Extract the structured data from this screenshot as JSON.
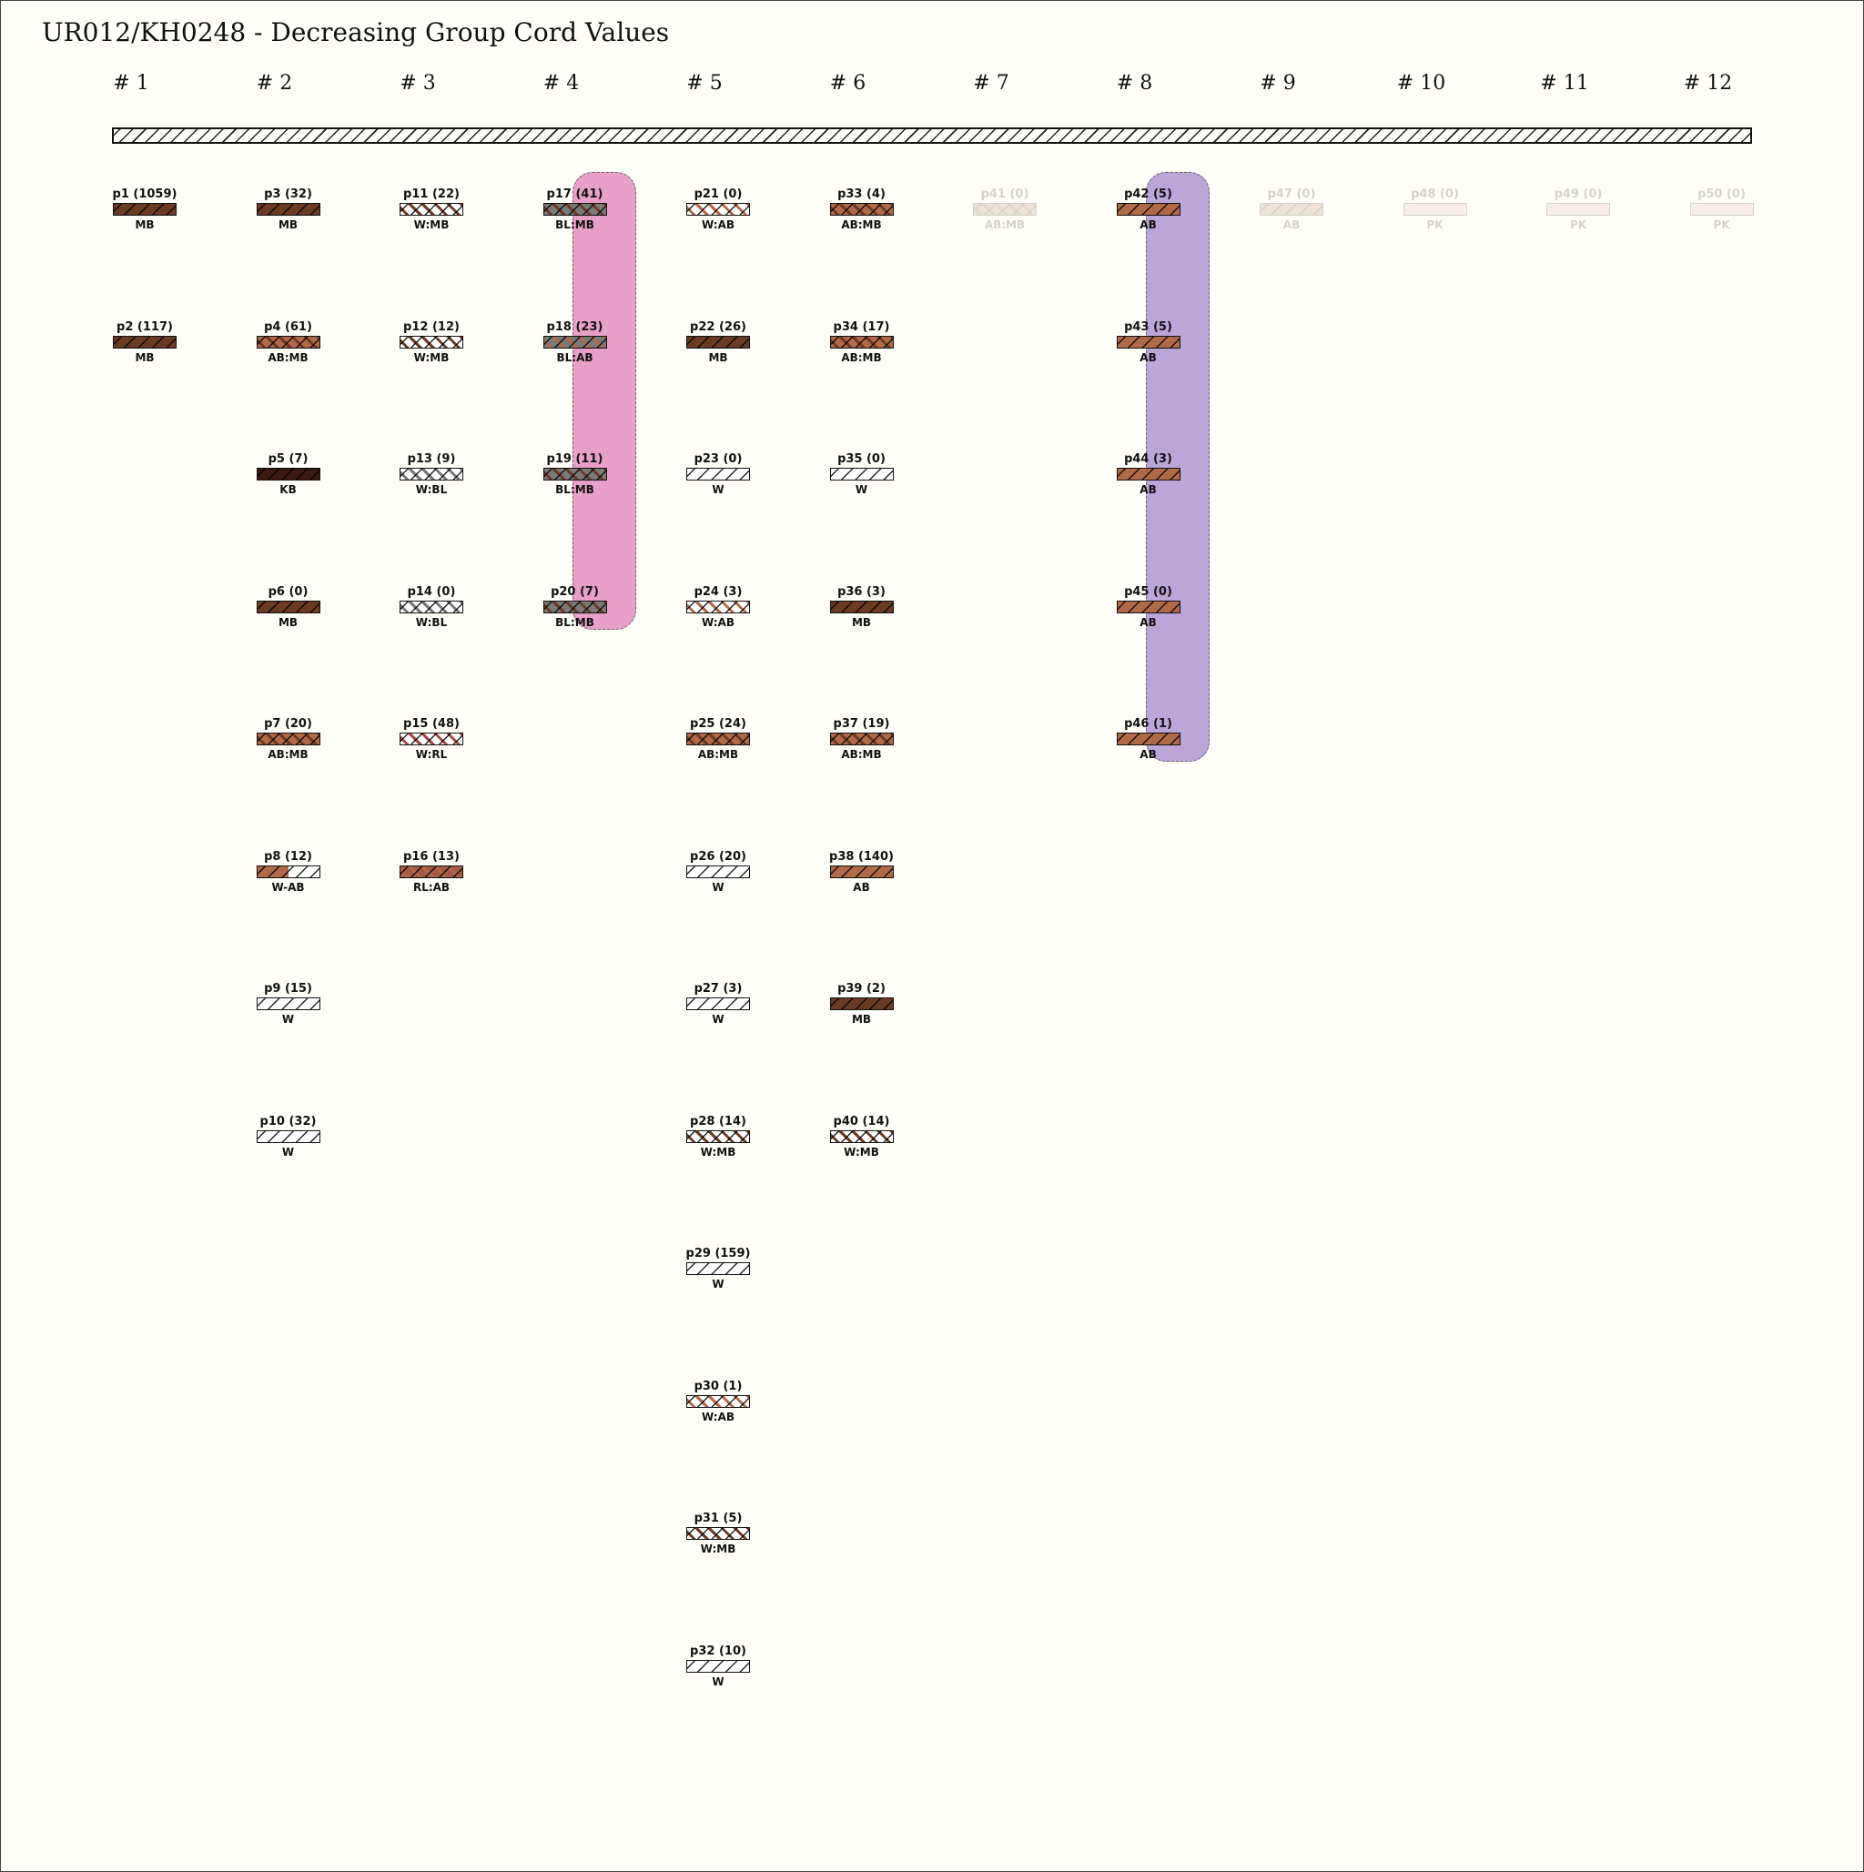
{
  "title": "UR012/KH0248 - Decreasing Group Cord Values",
  "highlight_colors": {
    "group4": "#e8a0c8",
    "group8": "#bba6d8"
  },
  "groups": [
    {
      "label": "# 1",
      "cords": [
        {
          "label": "p1 (1059)",
          "color": "MB",
          "fill": "#6b3a22",
          "fill2": "#6b3a22"
        },
        {
          "label": "p2 (117)",
          "color": "MB",
          "fill": "#6b3a22",
          "fill2": "#6b3a22"
        }
      ]
    },
    {
      "label": "# 2",
      "cords": [
        {
          "label": "p3 (32)",
          "color": "MB",
          "fill": "#6b3a22",
          "fill2": "#6b3a22"
        },
        {
          "label": "p4 (61)",
          "color": "AB:MB",
          "fill": "#b06a48",
          "fill2": "#6b3a22"
        },
        {
          "label": "p5 (7)",
          "color": "KB",
          "fill": "#3a1a0e",
          "fill2": "#3a1a0e"
        },
        {
          "label": "p6 (0)",
          "color": "MB",
          "fill": "#6b3a22",
          "fill2": "#6b3a22"
        },
        {
          "label": "p7 (20)",
          "color": "AB:MB",
          "fill": "#b06a48",
          "fill2": "#6b3a22"
        },
        {
          "label": "p8 (12)",
          "color": "W-AB",
          "fill": "#b06a48",
          "fill2": "#ffffff",
          "split": true
        },
        {
          "label": "p9 (15)",
          "color": "W",
          "fill": "#ffffff",
          "fill2": "#ffffff"
        },
        {
          "label": "p10 (32)",
          "color": "W",
          "fill": "#ffffff",
          "fill2": "#ffffff"
        }
      ]
    },
    {
      "label": "# 3",
      "cords": [
        {
          "label": "p11 (22)",
          "color": "W:MB",
          "fill": "#ffffff",
          "fill2": "#6b3a22"
        },
        {
          "label": "p12 (12)",
          "color": "W:MB",
          "fill": "#ffffff",
          "fill2": "#6b3a22"
        },
        {
          "label": "p13 (9)",
          "color": "W:BL",
          "fill": "#ffffff",
          "fill2": "#777777"
        },
        {
          "label": "p14 (0)",
          "color": "W:BL",
          "fill": "#ffffff",
          "fill2": "#777777"
        },
        {
          "label": "p15 (48)",
          "color": "W:RL",
          "fill": "#ffffff",
          "fill2": "#a04a40"
        },
        {
          "label": "p16 (13)",
          "color": "RL:AB",
          "fill": "#a45a44",
          "fill2": "#b06a48"
        }
      ]
    },
    {
      "label": "# 4",
      "highlight": "group4",
      "cords": [
        {
          "label": "p17 (41)",
          "color": "BL:MB",
          "fill": "#7a7a7a",
          "fill2": "#6b3a22"
        },
        {
          "label": "p18 (23)",
          "color": "BL:AB",
          "fill": "#7a7a7a",
          "fill2": "#b06a48"
        },
        {
          "label": "p19 (11)",
          "color": "BL:MB",
          "fill": "#7a7a7a",
          "fill2": "#6b3a22"
        },
        {
          "label": "p20 (7)",
          "color": "BL:MB",
          "fill": "#7a7a7a",
          "fill2": "#6b3a22"
        }
      ]
    },
    {
      "label": "# 5",
      "cords": [
        {
          "label": "p21 (0)",
          "color": "W:AB",
          "fill": "#ffffff",
          "fill2": "#b06a48"
        },
        {
          "label": "p22 (26)",
          "color": "MB",
          "fill": "#6b3a22",
          "fill2": "#6b3a22"
        },
        {
          "label": "p23 (0)",
          "color": "W",
          "fill": "#ffffff",
          "fill2": "#ffffff"
        },
        {
          "label": "p24 (3)",
          "color": "W:AB",
          "fill": "#ffffff",
          "fill2": "#b06a48"
        },
        {
          "label": "p25 (24)",
          "color": "AB:MB",
          "fill": "#b06a48",
          "fill2": "#6b3a22"
        },
        {
          "label": "p26 (20)",
          "color": "W",
          "fill": "#ffffff",
          "fill2": "#ffffff"
        },
        {
          "label": "p27 (3)",
          "color": "W",
          "fill": "#ffffff",
          "fill2": "#ffffff"
        },
        {
          "label": "p28 (14)",
          "color": "W:MB",
          "fill": "#ffffff",
          "fill2": "#6b3a22"
        },
        {
          "label": "p29 (159)",
          "color": "W",
          "fill": "#ffffff",
          "fill2": "#ffffff"
        },
        {
          "label": "p30 (1)",
          "color": "W:AB",
          "fill": "#ffffff",
          "fill2": "#b06a48"
        },
        {
          "label": "p31 (5)",
          "color": "W:MB",
          "fill": "#ffffff",
          "fill2": "#6b3a22"
        },
        {
          "label": "p32 (10)",
          "color": "W",
          "fill": "#ffffff",
          "fill2": "#ffffff"
        }
      ]
    },
    {
      "label": "# 6",
      "cords": [
        {
          "label": "p33 (4)",
          "color": "AB:MB",
          "fill": "#b06a48",
          "fill2": "#6b3a22"
        },
        {
          "label": "p34 (17)",
          "color": "AB:MB",
          "fill": "#b06a48",
          "fill2": "#6b3a22"
        },
        {
          "label": "p35 (0)",
          "color": "W",
          "fill": "#ffffff",
          "fill2": "#ffffff"
        },
        {
          "label": "p36 (3)",
          "color": "MB",
          "fill": "#6b3a22",
          "fill2": "#6b3a22"
        },
        {
          "label": "p37 (19)",
          "color": "AB:MB",
          "fill": "#b06a48",
          "fill2": "#6b3a22"
        },
        {
          "label": "p38 (140)",
          "color": "AB",
          "fill": "#b06a48",
          "fill2": "#b06a48"
        },
        {
          "label": "p39 (2)",
          "color": "MB",
          "fill": "#6b3a22",
          "fill2": "#6b3a22"
        },
        {
          "label": "p40 (14)",
          "color": "W:MB",
          "fill": "#ffffff",
          "fill2": "#6b3a22"
        }
      ]
    },
    {
      "label": "# 7",
      "cords": [
        {
          "label": "p41 (0)",
          "color": "AB:MB",
          "fill": "#b06a48",
          "fill2": "#6b3a22",
          "faded": true
        }
      ]
    },
    {
      "label": "# 8",
      "highlight": "group8",
      "cords": [
        {
          "label": "p42 (5)",
          "color": "AB",
          "fill": "#b06a48",
          "fill2": "#b06a48"
        },
        {
          "label": "p43 (5)",
          "color": "AB",
          "fill": "#b06a48",
          "fill2": "#b06a48"
        },
        {
          "label": "p44 (3)",
          "color": "AB",
          "fill": "#b06a48",
          "fill2": "#b06a48"
        },
        {
          "label": "p45 (0)",
          "color": "AB",
          "fill": "#b06a48",
          "fill2": "#b06a48"
        },
        {
          "label": "p46 (1)",
          "color": "AB",
          "fill": "#b06a48",
          "fill2": "#b06a48"
        }
      ]
    },
    {
      "label": "# 9",
      "cords": [
        {
          "label": "p47 (0)",
          "color": "AB",
          "fill": "#b06a48",
          "fill2": "#b06a48",
          "faded": true
        }
      ]
    },
    {
      "label": "# 10",
      "cords": [
        {
          "label": "p48 (0)",
          "color": "PK",
          "fill": "#e8a0a0",
          "fill2": "#e8a0a0",
          "faded": true,
          "plain": true
        }
      ]
    },
    {
      "label": "# 11",
      "cords": [
        {
          "label": "p49 (0)",
          "color": "PK",
          "fill": "#e8a0a0",
          "fill2": "#e8a0a0",
          "faded": true,
          "plain": true
        }
      ]
    },
    {
      "label": "# 12",
      "cords": [
        {
          "label": "p50 (0)",
          "color": "PK",
          "fill": "#e8a0a0",
          "fill2": "#e8a0a0",
          "faded": true,
          "plain": true
        }
      ]
    }
  ]
}
